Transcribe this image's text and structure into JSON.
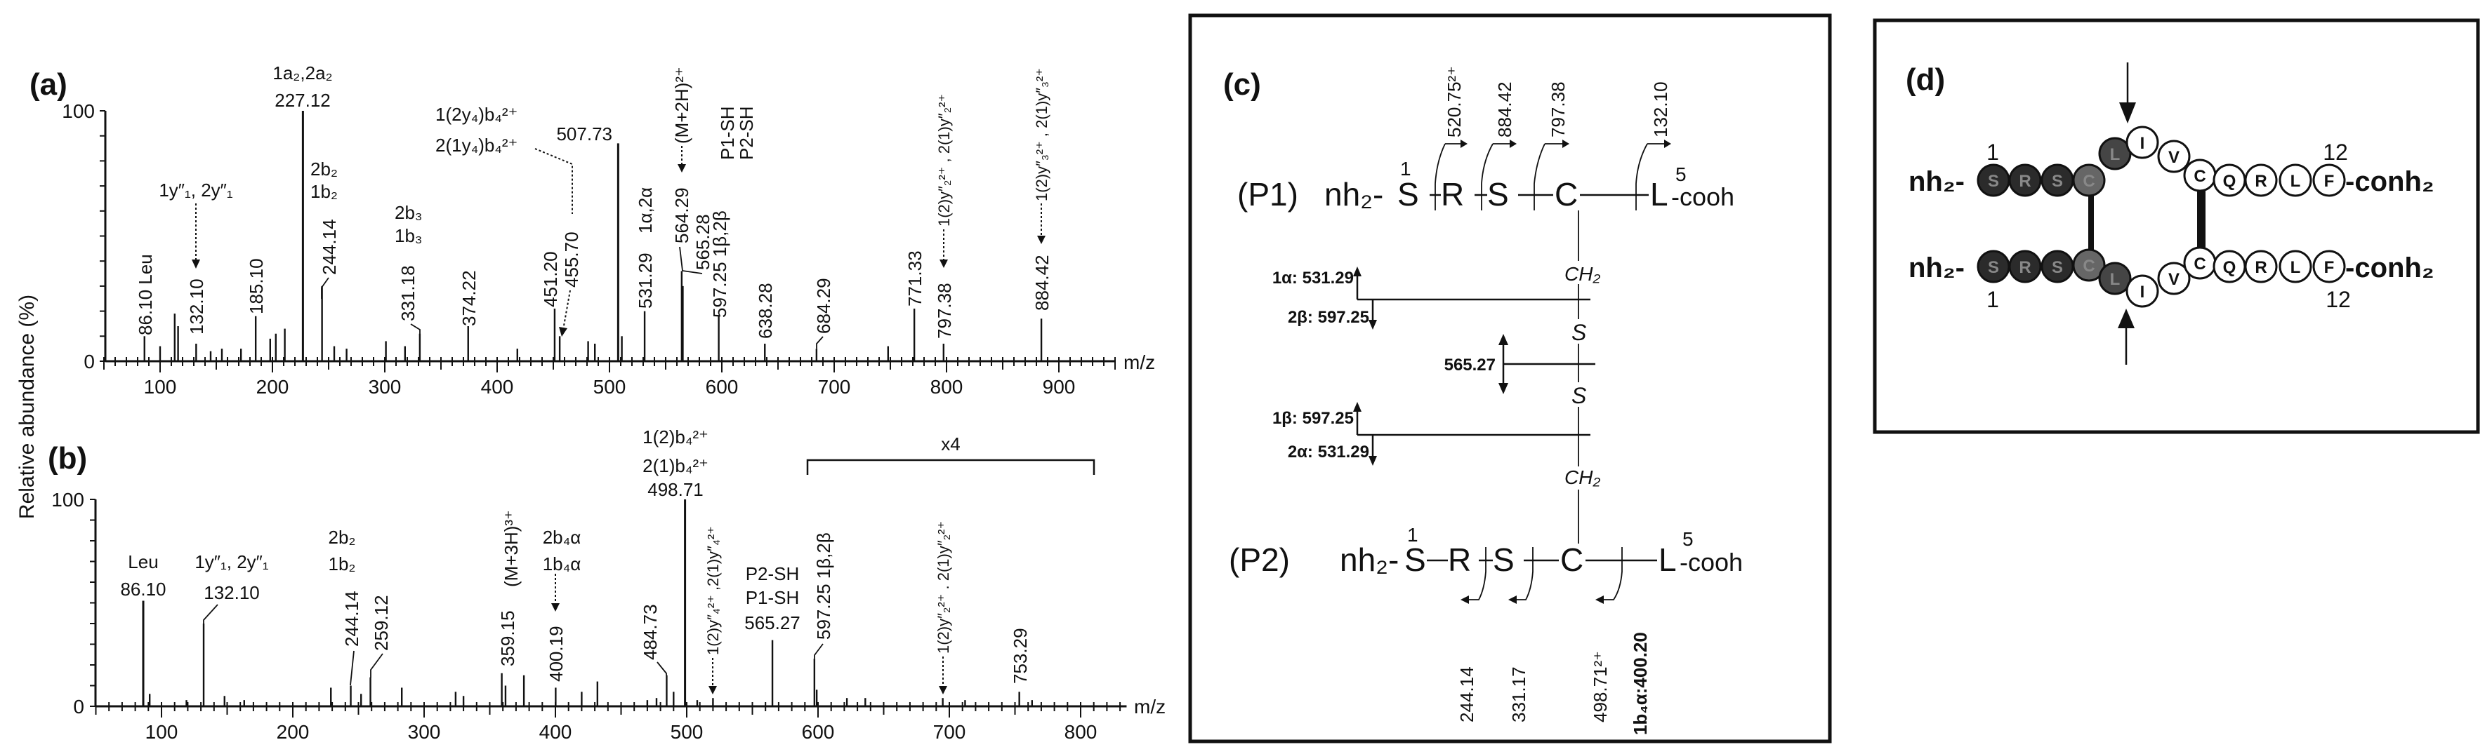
{
  "panel_labels": {
    "a": "(a)",
    "b": "(b)",
    "c": "(c)",
    "d": "(d)"
  },
  "y_axis_label": "Relative abundance (%)",
  "chart_data": [
    {
      "panel": "a",
      "type": "bar",
      "xlabel": "m/z",
      "ylabel": "Relative abundance (%)",
      "xlim": [
        50,
        950
      ],
      "ylim": [
        0,
        100
      ],
      "x_ticks": [
        100,
        200,
        300,
        400,
        500,
        600,
        700,
        800,
        900
      ],
      "y_tick_labels": [
        "0",
        "100"
      ],
      "peaks": [
        {
          "mz": 86.1,
          "intensity": 10
        },
        {
          "mz": 100,
          "intensity": 6
        },
        {
          "mz": 113,
          "intensity": 19
        },
        {
          "mz": 116,
          "intensity": 14
        },
        {
          "mz": 132.1,
          "intensity": 7
        },
        {
          "mz": 145,
          "intensity": 4
        },
        {
          "mz": 155,
          "intensity": 5
        },
        {
          "mz": 172,
          "intensity": 5
        },
        {
          "mz": 185.1,
          "intensity": 18
        },
        {
          "mz": 198,
          "intensity": 9
        },
        {
          "mz": 203,
          "intensity": 11
        },
        {
          "mz": 211,
          "intensity": 13
        },
        {
          "mz": 227.12,
          "intensity": 100
        },
        {
          "mz": 244.14,
          "intensity": 30
        },
        {
          "mz": 255,
          "intensity": 6
        },
        {
          "mz": 266,
          "intensity": 5
        },
        {
          "mz": 301,
          "intensity": 8
        },
        {
          "mz": 318,
          "intensity": 6
        },
        {
          "mz": 331.18,
          "intensity": 11
        },
        {
          "mz": 374.22,
          "intensity": 14
        },
        {
          "mz": 418,
          "intensity": 5
        },
        {
          "mz": 451.2,
          "intensity": 21
        },
        {
          "mz": 455.7,
          "intensity": 10
        },
        {
          "mz": 481,
          "intensity": 8
        },
        {
          "mz": 487,
          "intensity": 7
        },
        {
          "mz": 507.73,
          "intensity": 87
        },
        {
          "mz": 511,
          "intensity": 10
        },
        {
          "mz": 531.29,
          "intensity": 20
        },
        {
          "mz": 564.29,
          "intensity": 36
        },
        {
          "mz": 565.28,
          "intensity": 30
        },
        {
          "mz": 597.25,
          "intensity": 18
        },
        {
          "mz": 638.28,
          "intensity": 7
        },
        {
          "mz": 684.29,
          "intensity": 5
        },
        {
          "mz": 748,
          "intensity": 6
        },
        {
          "mz": 771.33,
          "intensity": 21
        },
        {
          "mz": 797.38,
          "intensity": 7
        },
        {
          "mz": 884.42,
          "intensity": 17
        }
      ],
      "annotations": {
        "p86": "86.10 Leu",
        "y1": "1y″₁, 2y″₁",
        "p132": "132.10",
        "p185": "185.10",
        "a2": "1a₂,2a₂",
        "p227": "227.12",
        "b2_2": "2b₂",
        "b2_1": "1b₂",
        "p244": "244.14",
        "b3_2": "2b₃",
        "b3_1": "1b₃",
        "p331": "331.18",
        "p374": "374.22",
        "b4_1": "1(2y₄)b₄²⁺",
        "b4_2": "2(1y₄)b₄²⁺",
        "p451": "451.20",
        "p455": "455.70",
        "p507": "507.73",
        "p531": "531.29",
        "alpha": "1α,2α",
        "m2h": "(M+2H)²⁺",
        "p564": "564.29",
        "p565": "565.28",
        "p1sh": "P1-SH",
        "p2sh": "P2-SH",
        "p597": "597.25  1β,2β",
        "p638": "638.28",
        "p684": "684.29",
        "p771": "771.33",
        "p797": "797.38",
        "y2": "1(2)y″₂²⁺ , 2(1)y″₂²⁺",
        "p884": "884.42",
        "y3": "1(2)y″₃²⁺ , 2(1)y″₃²⁺"
      }
    },
    {
      "panel": "b",
      "type": "bar",
      "xlabel": "m/z",
      "ylabel": "Relative abundance (%)",
      "xlim": [
        50,
        835
      ],
      "ylim": [
        0,
        100
      ],
      "x_ticks": [
        100,
        200,
        300,
        400,
        500,
        600,
        700,
        800
      ],
      "y_tick_labels": [
        "0",
        "100"
      ],
      "magnification": {
        "label": "x4",
        "range": [
          592,
          810
        ]
      },
      "peaks": [
        {
          "mz": 86.1,
          "intensity": 51
        },
        {
          "mz": 91,
          "intensity": 6
        },
        {
          "mz": 119,
          "intensity": 3
        },
        {
          "mz": 132.1,
          "intensity": 40
        },
        {
          "mz": 148,
          "intensity": 5
        },
        {
          "mz": 163,
          "intensity": 3
        },
        {
          "mz": 229,
          "intensity": 9
        },
        {
          "mz": 244.14,
          "intensity": 10
        },
        {
          "mz": 252,
          "intensity": 6
        },
        {
          "mz": 259.12,
          "intensity": 14
        },
        {
          "mz": 283,
          "intensity": 9
        },
        {
          "mz": 324,
          "intensity": 7
        },
        {
          "mz": 330,
          "intensity": 5
        },
        {
          "mz": 359.15,
          "intensity": 16
        },
        {
          "mz": 362,
          "intensity": 10
        },
        {
          "mz": 376,
          "intensity": 15
        },
        {
          "mz": 400.19,
          "intensity": 9
        },
        {
          "mz": 420,
          "intensity": 7
        },
        {
          "mz": 432,
          "intensity": 12
        },
        {
          "mz": 470,
          "intensity": 3
        },
        {
          "mz": 477,
          "intensity": 4
        },
        {
          "mz": 484.73,
          "intensity": 15
        },
        {
          "mz": 490,
          "intensity": 7
        },
        {
          "mz": 498.71,
          "intensity": 100
        },
        {
          "mz": 508,
          "intensity": 3
        },
        {
          "mz": 520,
          "intensity": 4
        },
        {
          "mz": 565.27,
          "intensity": 32
        },
        {
          "mz": 597.25,
          "intensity": 23
        },
        {
          "mz": 599,
          "intensity": 8
        },
        {
          "mz": 622,
          "intensity": 4
        },
        {
          "mz": 636,
          "intensity": 4
        },
        {
          "mz": 695,
          "intensity": 4
        },
        {
          "mz": 712,
          "intensity": 3
        },
        {
          "mz": 753.29,
          "intensity": 7
        },
        {
          "mz": 763,
          "intensity": 3
        }
      ],
      "annotations": {
        "leu": "Leu",
        "p86": "86.10",
        "y1": "1y″₁, 2y″₁",
        "p132": "132.10",
        "b2_2": "2b₂",
        "b2_1": "1b₂",
        "p244": "244.14",
        "p259": "259.12",
        "m3h": "(M+3H)³⁺",
        "p359": "359.15",
        "b4a_2": "2b₄α",
        "b4a_1": "1b₄α",
        "p400": "400.19",
        "p484": "484.73",
        "b4_1": "1(2)b₄²⁺",
        "b4_2": "2(1)b₄²⁺",
        "p498": "498.71",
        "y4": "1(2)y″₄²⁺ ,2(1)y″₄²⁺",
        "p2sh": "P2-SH",
        "p1sh": "P1-SH",
        "p565": "565.27",
        "p597": "597.25  1β,2β",
        "y2": "1(2)y″₂²⁺ . 2(1)y″₂²⁺",
        "p753": "753.29"
      }
    }
  ],
  "panel_c": {
    "p1": {
      "label": "(P1)",
      "nterm": "nh₂-",
      "residues": [
        "S",
        "R",
        "S",
        "C",
        "L"
      ],
      "cterm": "-cooh",
      "first": "1",
      "last": "5",
      "fragments_above": [
        "520.75²⁺",
        "884.42",
        "797.38",
        "132.10"
      ]
    },
    "p2": {
      "label": "(P2)",
      "nterm": "nh₂-",
      "residues": [
        "S",
        "R",
        "S",
        "C",
        "L"
      ],
      "cterm": "-cooh",
      "first": "1",
      "last": "5",
      "fragments_below": [
        "244.14",
        "331.17",
        "498.71²⁺",
        "1b₄α:400.20"
      ]
    },
    "linker": {
      "ch2": "CH₂",
      "s": "S"
    },
    "cleavages": {
      "alpha1": "1α: 531.29",
      "beta2": "2β: 597.25",
      "ss": "565.27",
      "beta1": "1β: 597.25",
      "alpha2": "2α: 531.29"
    }
  },
  "panel_d": {
    "nterm": "nh₂-",
    "cterm": "-conh₂",
    "first": "1",
    "last": "12",
    "dark_fill": "#2b2b2b",
    "cys_fill": "#666666",
    "leu_fill": "#454545",
    "light_fill": "#ffffff",
    "chain_top": [
      "S",
      "R",
      "S",
      "C",
      "L",
      "I",
      "V",
      "C",
      "Q",
      "R",
      "L",
      "F"
    ],
    "chain_bottom": [
      "S",
      "R",
      "S",
      "C",
      "L",
      "I",
      "V",
      "C",
      "Q",
      "R",
      "L",
      "F"
    ],
    "shaded_residues": 5
  }
}
